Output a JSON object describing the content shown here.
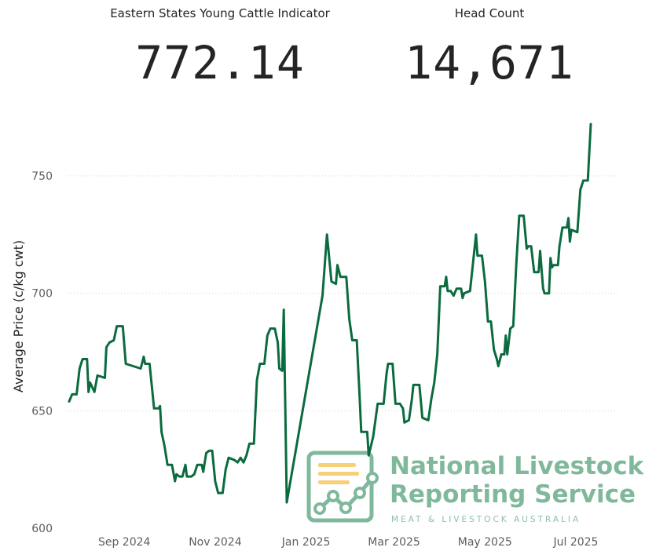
{
  "kpis": [
    {
      "label": "Eastern States Young Cattle Indicator",
      "value": "772.14"
    },
    {
      "label": "Head Count",
      "value": "14,671"
    }
  ],
  "watermark": {
    "line1": "National Livestock",
    "line2": "Reporting Service",
    "line3": "MEAT & LIVESTOCK AUSTRALIA",
    "color": "#7fb89b",
    "accent": "#f7d07a"
  },
  "chart_data": {
    "type": "line",
    "title": "",
    "xlabel": "",
    "ylabel": "Average Price (c/kg cwt)",
    "ylim": [
      600,
      772
    ],
    "yticks": [
      600,
      650,
      700,
      750
    ],
    "xlim": [
      "2024-07-26",
      "2025-07-30"
    ],
    "xticks": [
      {
        "date": "2024-09-01",
        "label": "Sep 2024"
      },
      {
        "date": "2024-11-01",
        "label": "Nov 2024"
      },
      {
        "date": "2025-01-01",
        "label": "Jan 2025"
      },
      {
        "date": "2025-03-01",
        "label": "Mar 2025"
      },
      {
        "date": "2025-05-01",
        "label": "May 2025"
      },
      {
        "date": "2025-07-01",
        "label": "Jul 2025"
      }
    ],
    "grid": true,
    "line_color": "#0b6b3f",
    "series": [
      {
        "name": "",
        "points": [
          [
            "2024-07-26",
            654
          ],
          [
            "2024-07-28",
            657
          ],
          [
            "2024-07-31",
            657
          ],
          [
            "2024-08-02",
            668
          ],
          [
            "2024-08-04",
            672
          ],
          [
            "2024-08-07",
            672
          ],
          [
            "2024-08-08",
            658
          ],
          [
            "2024-08-09",
            662
          ],
          [
            "2024-08-12",
            658
          ],
          [
            "2024-08-14",
            665
          ],
          [
            "2024-08-19",
            664
          ],
          [
            "2024-08-20",
            677
          ],
          [
            "2024-08-22",
            679
          ],
          [
            "2024-08-25",
            680
          ],
          [
            "2024-08-27",
            686
          ],
          [
            "2024-08-31",
            686
          ],
          [
            "2024-09-02",
            670
          ],
          [
            "2024-09-07",
            669
          ],
          [
            "2024-09-12",
            668
          ],
          [
            "2024-09-14",
            673
          ],
          [
            "2024-09-15",
            670
          ],
          [
            "2024-09-18",
            670
          ],
          [
            "2024-09-21",
            651
          ],
          [
            "2024-09-24",
            651
          ],
          [
            "2024-09-25",
            652
          ],
          [
            "2024-09-26",
            641
          ],
          [
            "2024-09-28",
            635
          ],
          [
            "2024-09-30",
            627
          ],
          [
            "2024-10-03",
            627
          ],
          [
            "2024-10-05",
            620
          ],
          [
            "2024-10-06",
            623
          ],
          [
            "2024-10-08",
            622
          ],
          [
            "2024-10-10",
            622
          ],
          [
            "2024-10-12",
            627
          ],
          [
            "2024-10-13",
            622
          ],
          [
            "2024-10-16",
            622
          ],
          [
            "2024-10-18",
            623
          ],
          [
            "2024-10-20",
            627
          ],
          [
            "2024-10-23",
            627
          ],
          [
            "2024-10-24",
            624
          ],
          [
            "2024-10-26",
            632
          ],
          [
            "2024-10-28",
            633
          ],
          [
            "2024-10-30",
            633
          ],
          [
            "2024-11-01",
            620
          ],
          [
            "2024-11-03",
            615
          ],
          [
            "2024-11-06",
            615
          ],
          [
            "2024-11-08",
            625
          ],
          [
            "2024-11-10",
            630
          ],
          [
            "2024-11-14",
            629
          ],
          [
            "2024-11-16",
            628
          ],
          [
            "2024-11-18",
            630
          ],
          [
            "2024-11-20",
            628
          ],
          [
            "2024-11-22",
            631
          ],
          [
            "2024-11-24",
            636
          ],
          [
            "2024-11-27",
            636
          ],
          [
            "2024-11-29",
            663
          ],
          [
            "2024-12-01",
            670
          ],
          [
            "2024-12-04",
            670
          ],
          [
            "2024-12-06",
            682
          ],
          [
            "2024-12-08",
            685
          ],
          [
            "2024-12-11",
            685
          ],
          [
            "2024-12-13",
            679
          ],
          [
            "2024-12-14",
            668
          ],
          [
            "2024-12-16",
            667
          ],
          [
            "2024-12-17",
            693
          ],
          [
            "2024-12-19",
            611
          ],
          [
            "2025-01-12",
            699
          ],
          [
            "2025-01-15",
            725
          ],
          [
            "2025-01-18",
            705
          ],
          [
            "2025-01-21",
            704
          ],
          [
            "2025-01-22",
            712
          ],
          [
            "2025-01-24",
            707
          ],
          [
            "2025-01-28",
            707
          ],
          [
            "2025-01-30",
            689
          ],
          [
            "2025-02-01",
            680
          ],
          [
            "2025-02-04",
            680
          ],
          [
            "2025-02-06",
            655
          ],
          [
            "2025-02-07",
            641
          ],
          [
            "2025-02-11",
            641
          ],
          [
            "2025-02-12",
            631
          ],
          [
            "2025-02-15",
            639
          ],
          [
            "2025-02-18",
            653
          ],
          [
            "2025-02-22",
            653
          ],
          [
            "2025-02-24",
            666
          ],
          [
            "2025-02-25",
            670
          ],
          [
            "2025-02-28",
            670
          ],
          [
            "2025-03-02",
            653
          ],
          [
            "2025-03-05",
            653
          ],
          [
            "2025-03-07",
            651
          ],
          [
            "2025-03-08",
            645
          ],
          [
            "2025-03-11",
            646
          ],
          [
            "2025-03-13",
            655
          ],
          [
            "2025-03-14",
            661
          ],
          [
            "2025-03-18",
            661
          ],
          [
            "2025-03-20",
            647
          ],
          [
            "2025-03-24",
            646
          ],
          [
            "2025-03-26",
            655
          ],
          [
            "2025-03-28",
            662
          ],
          [
            "2025-03-30",
            674
          ],
          [
            "2025-04-01",
            703
          ],
          [
            "2025-04-04",
            703
          ],
          [
            "2025-04-05",
            707
          ],
          [
            "2025-04-06",
            701
          ],
          [
            "2025-04-08",
            701
          ],
          [
            "2025-04-10",
            699
          ],
          [
            "2025-04-12",
            702
          ],
          [
            "2025-04-15",
            702
          ],
          [
            "2025-04-16",
            698
          ],
          [
            "2025-04-17",
            700
          ],
          [
            "2025-04-21",
            701
          ],
          [
            "2025-04-24",
            719
          ],
          [
            "2025-04-25",
            725
          ],
          [
            "2025-04-26",
            716
          ],
          [
            "2025-04-29",
            716
          ],
          [
            "2025-05-01",
            705
          ],
          [
            "2025-05-03",
            688
          ],
          [
            "2025-05-05",
            688
          ],
          [
            "2025-05-07",
            676
          ],
          [
            "2025-05-09",
            672
          ],
          [
            "2025-05-10",
            669
          ],
          [
            "2025-05-12",
            674
          ],
          [
            "2025-05-14",
            674
          ],
          [
            "2025-05-15",
            682
          ],
          [
            "2025-05-16",
            674
          ],
          [
            "2025-05-18",
            685
          ],
          [
            "2025-05-20",
            686
          ],
          [
            "2025-05-22",
            712
          ],
          [
            "2025-05-24",
            733
          ],
          [
            "2025-05-27",
            733
          ],
          [
            "2025-05-29",
            719
          ],
          [
            "2025-05-30",
            720
          ],
          [
            "2025-06-01",
            720
          ],
          [
            "2025-06-03",
            709
          ],
          [
            "2025-06-06",
            709
          ],
          [
            "2025-06-07",
            718
          ],
          [
            "2025-06-09",
            702
          ],
          [
            "2025-06-10",
            700
          ],
          [
            "2025-06-13",
            700
          ],
          [
            "2025-06-14",
            715
          ],
          [
            "2025-06-15",
            711
          ],
          [
            "2025-06-16",
            712
          ],
          [
            "2025-06-19",
            712
          ],
          [
            "2025-06-20",
            720
          ],
          [
            "2025-06-22",
            728
          ],
          [
            "2025-06-25",
            728
          ],
          [
            "2025-06-26",
            732
          ],
          [
            "2025-06-27",
            722
          ],
          [
            "2025-06-28",
            727
          ],
          [
            "2025-07-02",
            726
          ],
          [
            "2025-07-04",
            744
          ],
          [
            "2025-07-06",
            748
          ],
          [
            "2025-07-09",
            748
          ],
          [
            "2025-07-11",
            772
          ]
        ]
      }
    ]
  }
}
